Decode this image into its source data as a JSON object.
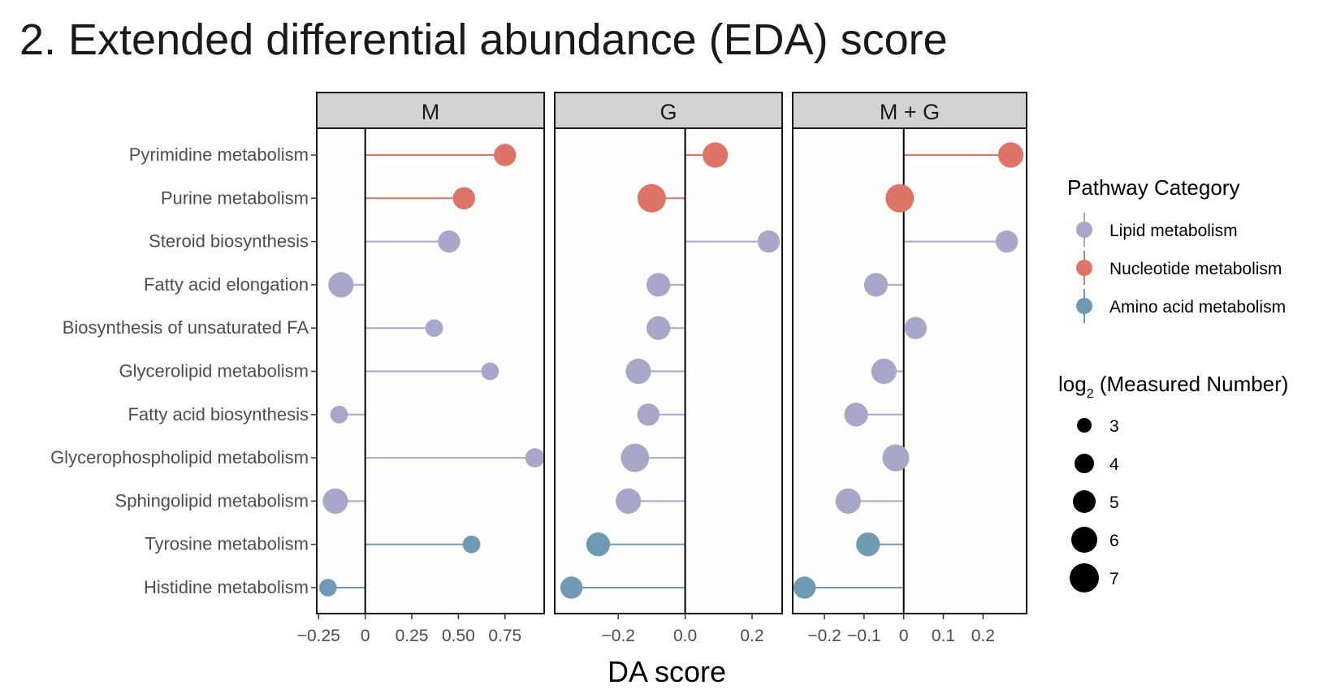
{
  "title": "2. Extended differential abundance (EDA) score",
  "colors": {
    "Lipid metabolism": "#a9a7c9",
    "Nucleotide metabolism": "#dd7467",
    "Amino acid metabolism": "#6f9ab3",
    "panel_bg": "#fdfdfb",
    "strip_bg": "#d2d3d0"
  },
  "chart_data": {
    "type": "lollipop",
    "xlabel": "DA score",
    "pathways": [
      "Pyrimidine metabolism",
      "Purine metabolism",
      "Steroid biosynthesis",
      "Fatty acid elongation",
      "Biosynthesis of unsaturated FA",
      "Glycerolipid metabolism",
      "Fatty acid biosynthesis",
      "Glycerophospholipid metabolism",
      "Sphingolipid metabolism",
      "Tyrosine metabolism",
      "Histidine metabolism"
    ],
    "categories": [
      "Nucleotide metabolism",
      "Nucleotide metabolism",
      "Lipid metabolism",
      "Lipid metabolism",
      "Lipid metabolism",
      "Lipid metabolism",
      "Lipid metabolism",
      "Lipid metabolism",
      "Lipid metabolism",
      "Amino acid metabolism",
      "Amino acid metabolism"
    ],
    "panels": [
      {
        "name": "M",
        "xlim": [
          -0.26,
          0.96
        ],
        "ticks": [
          -0.25,
          0,
          0.25,
          0.5,
          0.75
        ],
        "tick_labels": [
          "−0.25",
          "0",
          "0.25",
          "0.50",
          "0.75"
        ],
        "values": [
          0.75,
          0.53,
          0.45,
          -0.13,
          0.37,
          0.67,
          -0.14,
          0.91,
          -0.16,
          0.57,
          -0.2
        ],
        "sizes": [
          5,
          5,
          5,
          6,
          3.5,
          3.5,
          3.5,
          4,
          6,
          3.5,
          3.5
        ]
      },
      {
        "name": "G",
        "xlim": [
          -0.39,
          0.29
        ],
        "ticks": [
          -0.2,
          0,
          0.2
        ],
        "tick_labels": [
          "−0.2",
          "0.0",
          "0.2"
        ],
        "values": [
          0.09,
          -0.1,
          0.25,
          -0.08,
          -0.08,
          -0.14,
          -0.11,
          -0.15,
          -0.17,
          -0.26,
          -0.34
        ],
        "sizes": [
          6,
          7,
          5,
          5.5,
          5.5,
          6,
          5,
          7,
          6,
          5.5,
          5
        ]
      },
      {
        "name": "M + G",
        "xlim": [
          -0.28,
          0.31
        ],
        "ticks": [
          -0.2,
          -0.1,
          0,
          0.1,
          0.2
        ],
        "tick_labels": [
          "−0.2",
          "−0.1",
          "0",
          "0.1",
          "0.2"
        ],
        "values": [
          0.27,
          -0.01,
          0.26,
          -0.07,
          0.03,
          -0.05,
          -0.12,
          -0.02,
          -0.14,
          -0.09,
          -0.25
        ],
        "sizes": [
          6,
          7,
          5,
          5.5,
          5,
          6,
          5.5,
          6.5,
          6,
          5.5,
          5
        ]
      }
    ],
    "legend": {
      "category_title": "Pathway Category",
      "category_items": [
        "Lipid metabolism",
        "Nucleotide metabolism",
        "Amino acid metabolism"
      ],
      "size_title_main": "log",
      "size_title_sub": "2",
      "size_title_rest": " (Measured Number)",
      "size_items": [
        3,
        4,
        5,
        6,
        7
      ]
    },
    "grid": false,
    "legend_position": "right"
  }
}
